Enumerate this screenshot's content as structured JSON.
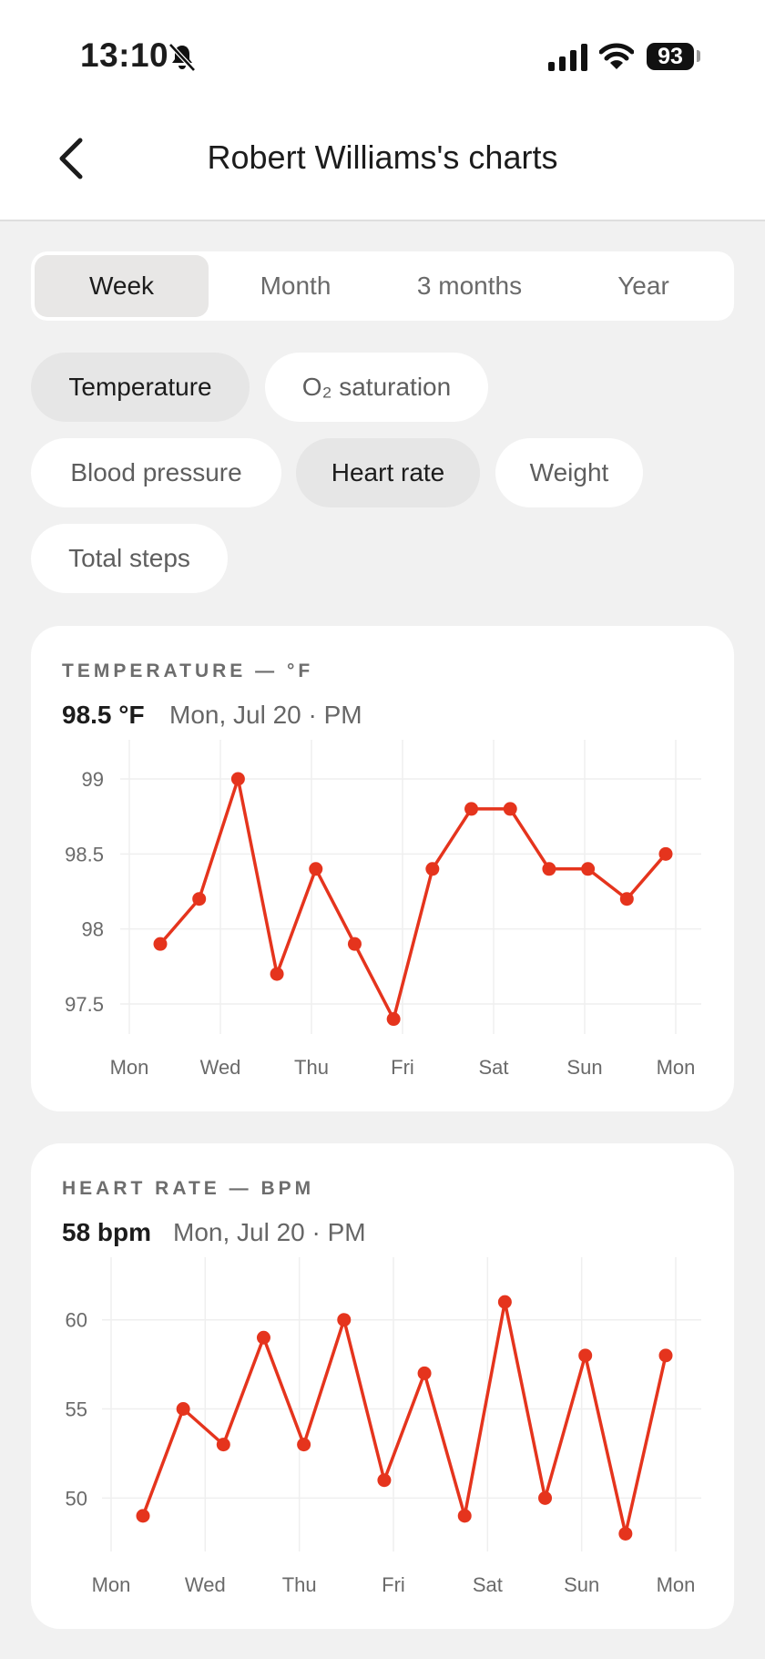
{
  "status_bar": {
    "time": "13:10",
    "battery": "93"
  },
  "nav": {
    "title": "Robert Williams's charts"
  },
  "range_tabs": [
    {
      "label": "Week",
      "active": true
    },
    {
      "label": "Month",
      "active": false
    },
    {
      "label": "3 months",
      "active": false
    },
    {
      "label": "Year",
      "active": false
    }
  ],
  "metric_chips": [
    {
      "label": "Temperature",
      "active": true
    },
    {
      "label": "O₂ saturation",
      "active": false
    },
    {
      "label": "Blood pressure",
      "active": false
    },
    {
      "label": "Heart rate",
      "active": true
    },
    {
      "label": "Weight",
      "active": false
    },
    {
      "label": "Total steps",
      "active": false
    }
  ],
  "colors": {
    "accent": "#e5341d",
    "grid": "#efefef"
  },
  "cards": [
    {
      "title": "TEMPERATURE — °F",
      "value": "98.5 °F",
      "date": "Mon, Jul 20 · PM"
    },
    {
      "title": "HEART RATE — BPM",
      "value": "58 bpm",
      "date": "Mon, Jul 20 · PM"
    }
  ],
  "chart_data": [
    {
      "type": "line",
      "title": "TEMPERATURE — °F",
      "xlabel": "",
      "ylabel": "",
      "x_ticks": [
        "Mon",
        "Wed",
        "Thu",
        "Fri",
        "Sat",
        "Sun",
        "Mon"
      ],
      "y_ticks": [
        99,
        98.5,
        98,
        97.5
      ],
      "ylim": [
        97.3,
        99.2
      ],
      "grid": true,
      "series": [
        {
          "values": [
            97.9,
            98.2,
            99.0,
            97.7,
            98.4,
            97.9,
            97.4,
            98.4,
            98.8,
            98.8,
            98.4,
            98.4,
            98.2,
            98.5
          ]
        }
      ]
    },
    {
      "type": "line",
      "title": "HEART RATE — BPM",
      "xlabel": "",
      "ylabel": "",
      "x_ticks": [
        "Mon",
        "Wed",
        "Thu",
        "Fri",
        "Sat",
        "Sun",
        "Mon"
      ],
      "y_ticks": [
        60,
        55,
        50
      ],
      "ylim": [
        47,
        63
      ],
      "grid": true,
      "series": [
        {
          "values": [
            49,
            55,
            53,
            59,
            53,
            60,
            51,
            57,
            49,
            61,
            50,
            58,
            48,
            58
          ]
        }
      ]
    }
  ]
}
